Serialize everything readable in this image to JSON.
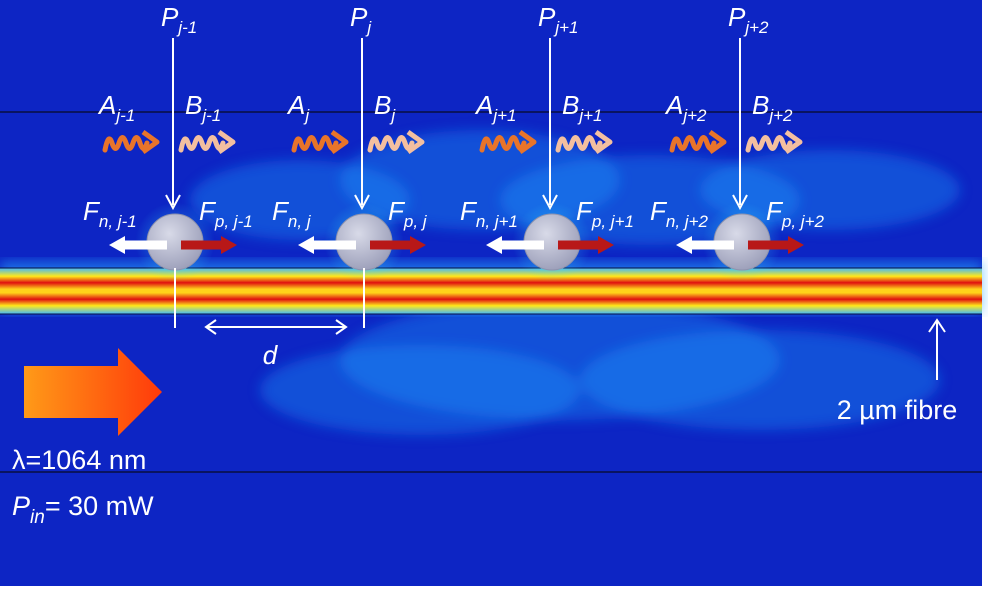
{
  "labels": {
    "power": [
      {
        "main": "P",
        "sub": "j-1"
      },
      {
        "main": "P",
        "sub": "j"
      },
      {
        "main": "P",
        "sub": "j+1"
      },
      {
        "main": "P",
        "sub": "j+2"
      }
    ],
    "amp_a": [
      {
        "main": "A",
        "sub": "j-1"
      },
      {
        "main": "A",
        "sub": "j"
      },
      {
        "main": "A",
        "sub": "j+1"
      },
      {
        "main": "A",
        "sub": "j+2"
      }
    ],
    "amp_b": [
      {
        "main": "B",
        "sub": "j-1"
      },
      {
        "main": "B",
        "sub": "j"
      },
      {
        "main": "B",
        "sub": "j+1"
      },
      {
        "main": "B",
        "sub": "j+2"
      }
    ],
    "force_n": [
      {
        "main": "F",
        "sub": "n, j-1"
      },
      {
        "main": "F",
        "sub": "n, j"
      },
      {
        "main": "F",
        "sub": "n, j+1"
      },
      {
        "main": "F",
        "sub": "n, j+2"
      }
    ],
    "force_p": [
      {
        "main": "F",
        "sub": "p, j-1"
      },
      {
        "main": "F",
        "sub": "p, j"
      },
      {
        "main": "F",
        "sub": "p, j+1"
      },
      {
        "main": "F",
        "sub": "p, j+2"
      }
    ],
    "spacing": "d",
    "fibre": "2 µm fibre",
    "wavelength": "λ=1064 nm",
    "pin_main": "P",
    "pin_sub": "in",
    "pin_value": "= 30 mW"
  },
  "colors": {
    "background": "#0a1fb8",
    "fibre_hot": "#e01010",
    "wave_a": "#e8742a",
    "wave_b": "#f3bfa0",
    "force_p": "#b81818",
    "force_n": "#ffffff",
    "particle": "#b9bcd0",
    "input_arrow": "#ff6a10"
  }
}
